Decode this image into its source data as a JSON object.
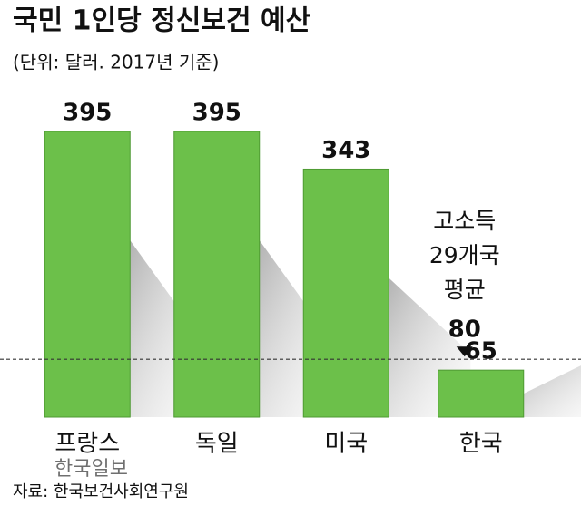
{
  "chart_data": {
    "type": "bar",
    "title": "국민 1인당 정신보건 예산",
    "subtitle": "(단위: 달러. 2017년 기준)",
    "categories": [
      "프랑스",
      "독일",
      "미국",
      "한국"
    ],
    "values": [
      395,
      395,
      343,
      65
    ],
    "color": "#6cc04a",
    "ylim": [
      0,
      400
    ],
    "reference_line": {
      "value": 80,
      "label": [
        "고소득",
        "29개국",
        "평균"
      ]
    },
    "source": "자료: 한국보건사회연구원",
    "watermark": "한국일보"
  }
}
